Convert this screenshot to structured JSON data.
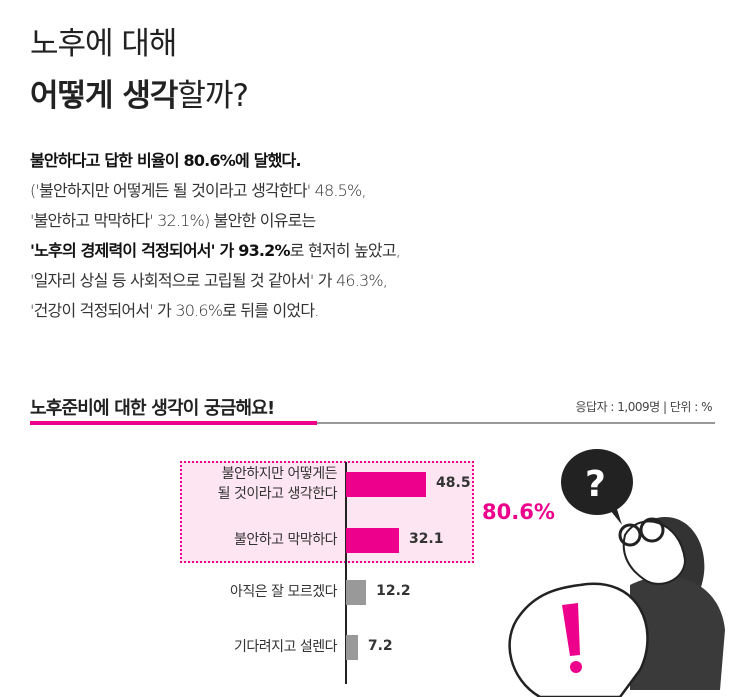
{
  "header": {
    "line1": "노후에 대해",
    "line2_bold": "어떻게 생각",
    "line2_rest": "할까?"
  },
  "body": {
    "l1": "불안하다고 답한 비율이 80.6%에 달했다.",
    "l2": "('불안하지만 어떻게든 될 것이라고 생각한다' 48.5%,",
    "l3": "'불안하고 막막하다' 32.1%) 불안한 이유로는",
    "l4_bold": "'노후의 경제력이 걱정되어서' 가 93.2%",
    "l4_rest": "로 현저히 높았고,",
    "l5": "'일자리 상실 등 사회적으로 고립될 것 같아서' 가 46.3%,",
    "l6": "'건강이 걱정되어서' 가 30.6%로 뒤를 이었다."
  },
  "section": {
    "title": "노후준비에 대한 생각이 궁금해요!",
    "meta": "응답자 : 1,009명 | 단위 : %"
  },
  "chart_data": {
    "type": "bar",
    "orientation": "horizontal",
    "categories": [
      "불안하지만 어떻게든 될 것이라고 생각한다",
      "불안하고 막막하다",
      "아직은 잘 모르겠다",
      "기다려지고 설렌다"
    ],
    "label_lines": [
      [
        "불안하지만 어떻게든",
        "될 것이라고 생각한다"
      ],
      [
        "불안하고 막막하다"
      ],
      [
        "아직은 잘 모르겠다"
      ],
      [
        "기다려지고 설렌다"
      ]
    ],
    "values": [
      48.5,
      32.1,
      12.2,
      7.2
    ],
    "value_labels": [
      "48.5",
      "32.1",
      "12.2",
      "7.2"
    ],
    "colors": [
      "#ec008c",
      "#ec008c",
      "#999999",
      "#999999"
    ],
    "highlight_total": "80.6%",
    "highlight_color": "#ec008c"
  }
}
